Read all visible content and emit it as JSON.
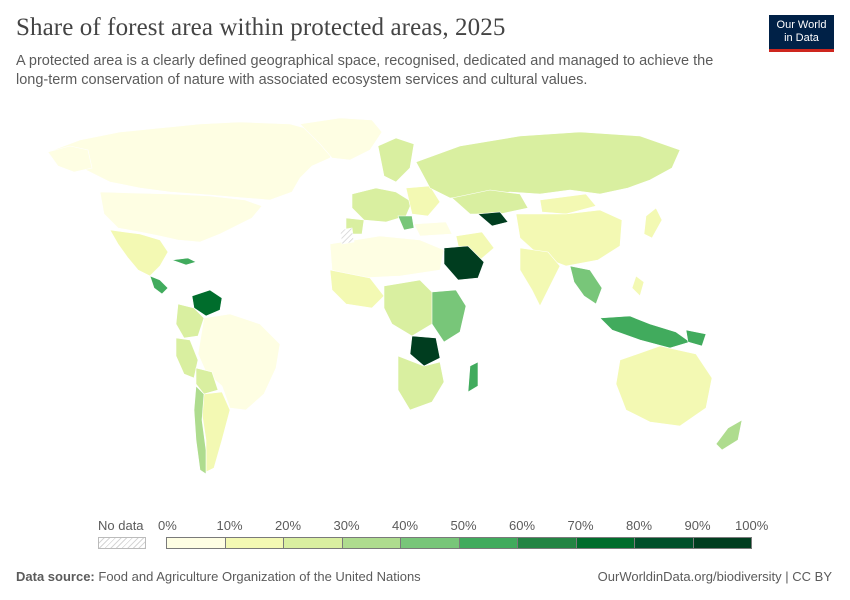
{
  "header": {
    "title": "Share of forest area within protected areas, 2025",
    "subtitle": "A protected area is a clearly defined geographical space, recognised, dedicated and managed to achieve the long-term conservation of nature with associated ecosystem services and cultural values.",
    "logo_line1": "Our World",
    "logo_line2": "in Data"
  },
  "legend": {
    "no_data_label": "No data",
    "bins": [
      {
        "label": "0%",
        "color": "#fefee3"
      },
      {
        "label": "10%",
        "color": "#f3f9b3"
      },
      {
        "label": "20%",
        "color": "#d9efa0"
      },
      {
        "label": "30%",
        "color": "#aedc8e"
      },
      {
        "label": "40%",
        "color": "#78c679"
      },
      {
        "label": "50%",
        "color": "#41ab5d"
      },
      {
        "label": "60%",
        "color": "#238443"
      },
      {
        "label": "70%",
        "color": "#006d2c"
      },
      {
        "label": "80%",
        "color": "#00502a"
      },
      {
        "label": "90%",
        "color": "#003d1f"
      }
    ],
    "end_label": "100%"
  },
  "footer": {
    "source_label": "Data source:",
    "source_text": "Food and Agriculture Organization of the United Nations",
    "right_text": "OurWorldinData.org/biodiversity | CC BY"
  },
  "colors": {
    "nodata_fill": "#e8e8e8",
    "brand_navy": "#002147",
    "brand_red": "#ce261e"
  }
}
